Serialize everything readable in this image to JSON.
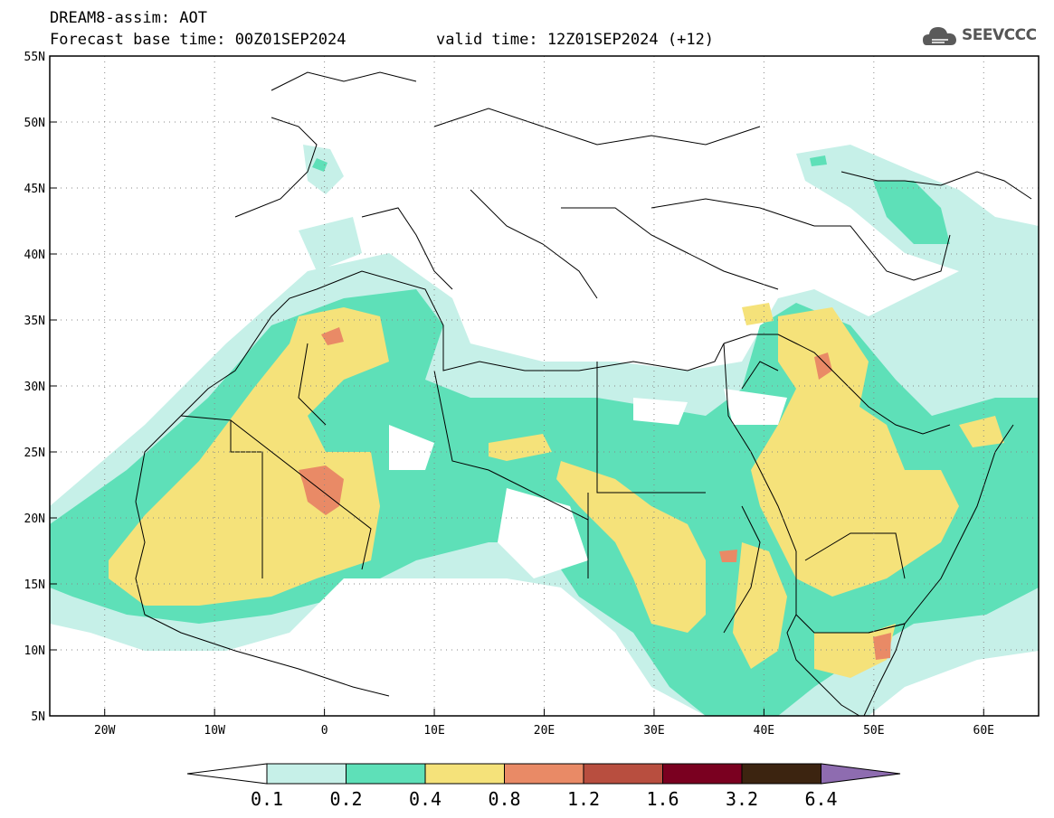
{
  "header": {
    "title": "DREAM8-assim: AOT",
    "base_time": "Forecast base time: 00Z01SEP2024",
    "valid_time": "valid time: 12Z01SEP2024 (+12)"
  },
  "logo": {
    "text": "SEEVCCC",
    "icon": "cloud-logo-icon"
  },
  "map": {
    "lon_range": [
      -25,
      65
    ],
    "lat_range": [
      5,
      55
    ],
    "lat_ticks": [
      "5N",
      "10N",
      "15N",
      "20N",
      "25N",
      "30N",
      "35N",
      "40N",
      "45N",
      "50N",
      "55N"
    ],
    "lon_ticks": [
      "20W",
      "10W",
      "0",
      "10E",
      "20E",
      "30E",
      "40E",
      "50E",
      "60E"
    ],
    "grid": "dotted"
  },
  "colorbar": {
    "labels": [
      "0.1",
      "0.2",
      "0.4",
      "0.8",
      "1.2",
      "1.6",
      "3.2",
      "6.4"
    ],
    "colors": [
      "#c6f0e8",
      "#5ee0b8",
      "#f5e27a",
      "#e98a66",
      "#b84e3f",
      "#7a0020",
      "#3c2410",
      "#8e6cb0"
    ]
  },
  "palette": {
    "land_border": "#000000",
    "frame": "#000000"
  }
}
